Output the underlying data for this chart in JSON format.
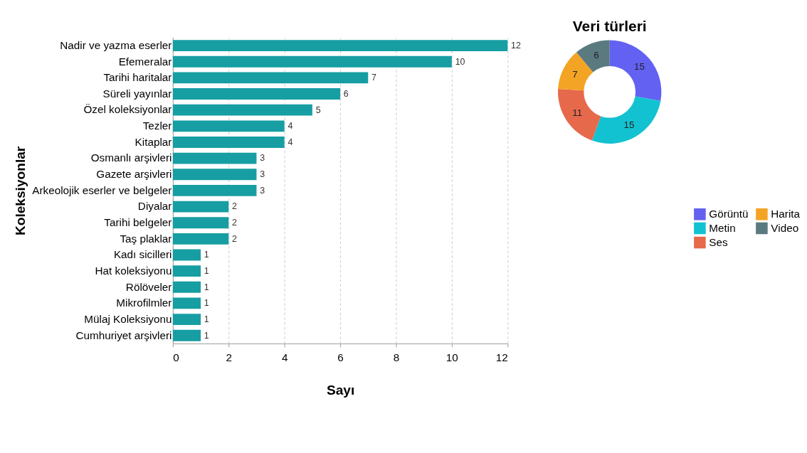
{
  "chart_data": [
    {
      "type": "bar",
      "orientation": "horizontal",
      "xlabel": "Sayı",
      "ylabel": "Koleksiyonlar",
      "categories": [
        "Nadir ve yazma eserler",
        "Efemeralar",
        "Tarihi haritalar",
        "Süreli yayınlar",
        "Özel koleksiyonlar",
        "Tezler",
        "Kitaplar",
        "Osmanlı arşivleri",
        "Gazete arşivleri",
        "Arkeolojik eserler ve belgeler",
        "Diyalar",
        "Tarihi belgeler",
        "Taş plaklar",
        "Kadı sicilleri",
        "Hat koleksiyonu",
        "Rölöveler",
        "Mikrofilmler",
        "Mülaj Koleksiyonu",
        "Cumhuriyet arşivleri"
      ],
      "values": [
        12,
        10,
        7,
        6,
        5,
        4,
        4,
        3,
        3,
        3,
        2,
        2,
        2,
        1,
        1,
        1,
        1,
        1,
        1
      ],
      "color": "#169ea3",
      "xlim": [
        0,
        12
      ],
      "xticks": [
        0,
        2,
        4,
        6,
        8,
        10,
        12
      ],
      "grid": "x",
      "data_labels": true
    },
    {
      "type": "donut",
      "title": "Veri türleri",
      "categories": [
        "Görüntü",
        "Metin",
        "Ses",
        "Harita",
        "Video"
      ],
      "values": [
        15,
        15,
        11,
        7,
        6
      ],
      "colors": [
        "#6361f2",
        "#12c2d0",
        "#e6694b",
        "#f4a424",
        "#5a7a7f"
      ],
      "legend": "bottom",
      "data_labels": true
    }
  ]
}
